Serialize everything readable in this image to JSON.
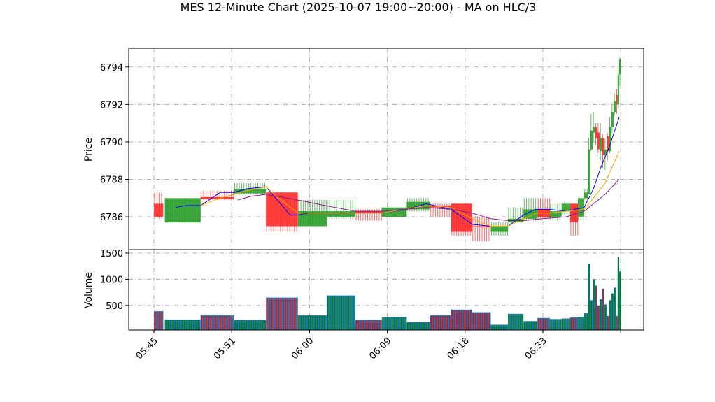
{
  "chart_data": {
    "type": "candlestick",
    "title": "MES 12-Minute Chart (2025-10-07 19:00~20:00) - MA on HLC/3",
    "xlabel": "",
    "price_panel": {
      "ylabel": "Price",
      "ylim": [
        6784.25,
        6795.0
      ],
      "yticks": [
        6786,
        6788,
        6790,
        6792,
        6794
      ]
    },
    "volume_panel": {
      "ylabel": "Volume",
      "ylim": [
        30,
        1567
      ],
      "yticks": [
        500,
        1000,
        1500
      ]
    },
    "xlim": [
      -3.24,
      62.95
    ],
    "xticks": [
      0,
      10,
      20,
      30,
      40,
      50,
      60
    ],
    "xtick_labels": [
      "05:45",
      "05:51",
      "06:00",
      "06:09",
      "06:18",
      "06:33",
      ""
    ],
    "grid": true,
    "colors": {
      "up": "#2ca02c",
      "down": "#ff2a2a",
      "volume": "#1f77b4",
      "ma_fast": "#0000ff",
      "ma_mid": "#ffa500",
      "ma_slow": "#8b1a8b"
    },
    "bars": [
      {
        "x0": 0,
        "x1": 1.2,
        "o": 6786.7,
        "c": 6786.0,
        "h": 6787.3,
        "l": 6785.9,
        "v": 390
      },
      {
        "x0": 1.4,
        "x1": 6,
        "o": 6785.7,
        "c": 6787.0,
        "h": 6787.0,
        "l": 6785.7,
        "v": 230
      },
      {
        "x0": 6,
        "x1": 10.3,
        "o": 6787.05,
        "c": 6786.95,
        "h": 6787.4,
        "l": 6786.9,
        "v": 310
      },
      {
        "x0": 10.3,
        "x1": 14.4,
        "o": 6787.25,
        "c": 6787.5,
        "h": 6787.8,
        "l": 6787.2,
        "v": 220
      },
      {
        "x0": 14.4,
        "x1": 18.5,
        "o": 6787.3,
        "c": 6785.5,
        "h": 6787.3,
        "l": 6785.2,
        "v": 650
      },
      {
        "x0": 18.5,
        "x1": 22.2,
        "o": 6785.5,
        "c": 6786.3,
        "h": 6786.9,
        "l": 6785.5,
        "v": 310
      },
      {
        "x0": 22.2,
        "x1": 25.9,
        "o": 6786.0,
        "c": 6786.3,
        "h": 6786.9,
        "l": 6785.9,
        "v": 690
      },
      {
        "x0": 25.9,
        "x1": 29.3,
        "o": 6786.3,
        "c": 6786.2,
        "h": 6786.4,
        "l": 6785.8,
        "v": 220
      },
      {
        "x0": 29.3,
        "x1": 32.5,
        "o": 6786.0,
        "c": 6786.5,
        "h": 6786.5,
        "l": 6786.0,
        "v": 280
      },
      {
        "x0": 32.5,
        "x1": 35.5,
        "o": 6786.4,
        "c": 6786.8,
        "h": 6787.0,
        "l": 6786.3,
        "v": 180
      },
      {
        "x0": 35.5,
        "x1": 38.2,
        "o": 6786.6,
        "c": 6786.5,
        "h": 6786.7,
        "l": 6786.0,
        "v": 310
      },
      {
        "x0": 38.2,
        "x1": 40.9,
        "o": 6786.7,
        "c": 6785.2,
        "h": 6786.7,
        "l": 6785.0,
        "v": 420
      },
      {
        "x0": 40.9,
        "x1": 43.3,
        "o": 6785.5,
        "c": 6785.45,
        "h": 6786.0,
        "l": 6784.7,
        "v": 370
      },
      {
        "x0": 43.3,
        "x1": 45.5,
        "o": 6785.2,
        "c": 6785.5,
        "h": 6785.7,
        "l": 6785.0,
        "v": 130
      },
      {
        "x0": 45.5,
        "x1": 47.5,
        "o": 6785.7,
        "c": 6785.9,
        "h": 6786.5,
        "l": 6785.7,
        "v": 340
      },
      {
        "x0": 47.5,
        "x1": 49.3,
        "o": 6785.9,
        "c": 6786.4,
        "h": 6787.0,
        "l": 6785.8,
        "v": 200
      },
      {
        "x0": 49.3,
        "x1": 50.9,
        "o": 6786.4,
        "c": 6786.0,
        "h": 6787.0,
        "l": 6785.9,
        "v": 260
      },
      {
        "x0": 50.9,
        "x1": 52.4,
        "o": 6786.0,
        "c": 6786.3,
        "h": 6786.7,
        "l": 6785.8,
        "v": 240
      },
      {
        "x0": 52.4,
        "x1": 53.5,
        "o": 6786.3,
        "c": 6786.7,
        "h": 6786.8,
        "l": 6786.1,
        "v": 250
      },
      {
        "x0": 53.5,
        "x1": 54.5,
        "o": 6786.7,
        "c": 6785.7,
        "h": 6786.7,
        "l": 6785.0,
        "v": 270
      },
      {
        "x0": 54.5,
        "x1": 55.3,
        "o": 6786.0,
        "c": 6787.0,
        "h": 6787.0,
        "l": 6785.8,
        "v": 280
      },
      {
        "x0": 55.3,
        "x1": 55.8,
        "o": 6787.0,
        "c": 6787.3,
        "h": 6787.5,
        "l": 6786.9,
        "v": 350
      },
      {
        "x0": 55.8,
        "x1": 56.1,
        "o": 6787.2,
        "c": 6789.6,
        "h": 6790.2,
        "l": 6787.2,
        "v": 1300
      },
      {
        "x0": 56.1,
        "x1": 56.4,
        "o": 6789.6,
        "c": 6790.6,
        "h": 6791.5,
        "l": 6789.5,
        "v": 600
      },
      {
        "x0": 56.4,
        "x1": 56.7,
        "o": 6790.5,
        "c": 6790.8,
        "h": 6791.6,
        "l": 6790.0,
        "v": 1000
      },
      {
        "x0": 56.7,
        "x1": 57.0,
        "o": 6790.8,
        "c": 6790.2,
        "h": 6791.0,
        "l": 6789.8,
        "v": 880
      },
      {
        "x0": 57.0,
        "x1": 57.3,
        "o": 6790.5,
        "c": 6789.6,
        "h": 6791.0,
        "l": 6789.4,
        "v": 500
      },
      {
        "x0": 57.3,
        "x1": 57.6,
        "o": 6789.5,
        "c": 6790.2,
        "h": 6791.0,
        "l": 6789.0,
        "v": 620
      },
      {
        "x0": 57.6,
        "x1": 57.9,
        "o": 6790.2,
        "c": 6789.3,
        "h": 6790.4,
        "l": 6788.6,
        "v": 820
      },
      {
        "x0": 57.9,
        "x1": 58.2,
        "o": 6789.3,
        "c": 6789.6,
        "h": 6790.2,
        "l": 6788.5,
        "v": 520
      },
      {
        "x0": 58.2,
        "x1": 58.5,
        "o": 6790.3,
        "c": 6789.5,
        "h": 6790.5,
        "l": 6789.0,
        "v": 300
      },
      {
        "x0": 58.5,
        "x1": 58.8,
        "o": 6789.5,
        "c": 6790.8,
        "h": 6791.3,
        "l": 6789.4,
        "v": 600
      },
      {
        "x0": 58.8,
        "x1": 59.1,
        "o": 6790.8,
        "c": 6791.6,
        "h": 6792.0,
        "l": 6790.5,
        "v": 730
      },
      {
        "x0": 59.1,
        "x1": 59.4,
        "o": 6791.6,
        "c": 6792.2,
        "h": 6792.6,
        "l": 6791.4,
        "v": 840
      },
      {
        "x0": 59.4,
        "x1": 59.6,
        "o": 6792.5,
        "c": 6792.0,
        "h": 6792.8,
        "l": 6791.5,
        "v": 300
      },
      {
        "x0": 59.6,
        "x1": 59.8,
        "o": 6792.0,
        "c": 6793.6,
        "h": 6794.0,
        "l": 6791.8,
        "v": 1430
      },
      {
        "x0": 59.8,
        "x1": 60.0,
        "o": 6793.6,
        "c": 6794.4,
        "h": 6794.5,
        "l": 6793.0,
        "v": 1150
      }
    ],
    "series": [
      {
        "name": "ma_fast",
        "color": "#0000ff",
        "points": [
          [
            2.8,
            6786.5
          ],
          [
            4,
            6786.6
          ],
          [
            6,
            6786.6
          ],
          [
            8.5,
            6787.3
          ],
          [
            10.3,
            6787.3
          ],
          [
            12,
            6787.5
          ],
          [
            14.4,
            6787.6
          ],
          [
            17.5,
            6786.1
          ],
          [
            18.5,
            6786.1
          ],
          [
            20,
            6786.2
          ],
          [
            25.9,
            6786.2
          ],
          [
            29.3,
            6786.2
          ],
          [
            32.5,
            6786.4
          ],
          [
            35,
            6786.7
          ],
          [
            38.2,
            6786.4
          ],
          [
            40.9,
            6785.6
          ],
          [
            43.3,
            6785.5
          ],
          [
            45.5,
            6785.5
          ],
          [
            47.5,
            6786.1
          ],
          [
            49,
            6786.4
          ],
          [
            50.9,
            6786.4
          ],
          [
            53,
            6786.3
          ],
          [
            55.3,
            6786.5
          ],
          [
            56.5,
            6787.5
          ],
          [
            57.5,
            6788.7
          ],
          [
            58.5,
            6789.7
          ],
          [
            59.8,
            6791.3
          ]
        ]
      },
      {
        "name": "ma_mid",
        "color": "#ffa500",
        "points": [
          [
            6,
            6786.6
          ],
          [
            8.5,
            6787.0
          ],
          [
            10.3,
            6787.2
          ],
          [
            12,
            6787.4
          ],
          [
            14.4,
            6787.6
          ],
          [
            16,
            6787.0
          ],
          [
            18.5,
            6786.2
          ],
          [
            22,
            6786.2
          ],
          [
            29.3,
            6786.2
          ],
          [
            35,
            6786.6
          ],
          [
            38.2,
            6786.5
          ],
          [
            40.9,
            6785.9
          ],
          [
            43.3,
            6785.5
          ],
          [
            45.5,
            6785.5
          ],
          [
            47.5,
            6785.9
          ],
          [
            49.3,
            6786.2
          ],
          [
            50.9,
            6786.2
          ],
          [
            53,
            6786.3
          ],
          [
            55.3,
            6786.4
          ],
          [
            56.5,
            6787.0
          ],
          [
            58,
            6787.8
          ],
          [
            59.8,
            6789.5
          ]
        ]
      },
      {
        "name": "ma_slow",
        "color": "#8b1a8b",
        "points": [
          [
            10.8,
            6786.9
          ],
          [
            12.5,
            6787.1
          ],
          [
            14.4,
            6787.2
          ],
          [
            18.5,
            6786.9
          ],
          [
            22,
            6786.6
          ],
          [
            25.9,
            6786.3
          ],
          [
            29.3,
            6786.3
          ],
          [
            35,
            6786.5
          ],
          [
            38.2,
            6786.4
          ],
          [
            40.9,
            6786.2
          ],
          [
            43.3,
            6785.9
          ],
          [
            45.5,
            6785.8
          ],
          [
            47.5,
            6785.8
          ],
          [
            50,
            6785.9
          ],
          [
            53,
            6786.0
          ],
          [
            55.3,
            6786.3
          ],
          [
            56.5,
            6786.7
          ],
          [
            58,
            6787.2
          ],
          [
            59.8,
            6788.0
          ]
        ]
      }
    ]
  }
}
